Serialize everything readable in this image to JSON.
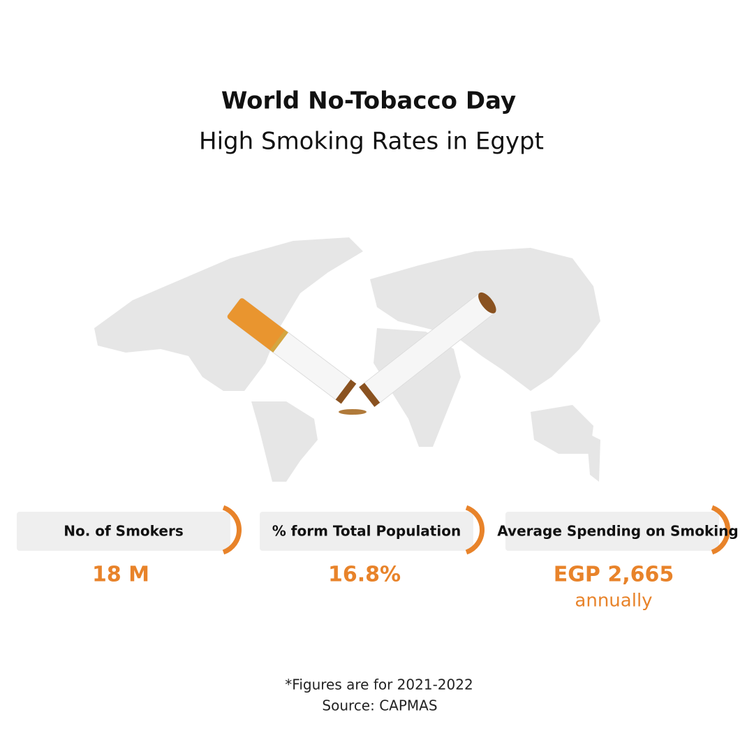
{
  "header": {
    "title": "World No-Tobacco Day",
    "subtitle": "High Smoking Rates in Egypt"
  },
  "stats": [
    {
      "label": "No. of Smokers",
      "value": "18 M"
    },
    {
      "label": "% form Total Population",
      "value": "16.8%"
    },
    {
      "label": "Average Spending on Smoking",
      "value": "EGP 2,665",
      "note": "annually"
    }
  ],
  "footer": {
    "note": "*Figures are for 2021-2022",
    "source": "Source: CAPMAS"
  }
}
